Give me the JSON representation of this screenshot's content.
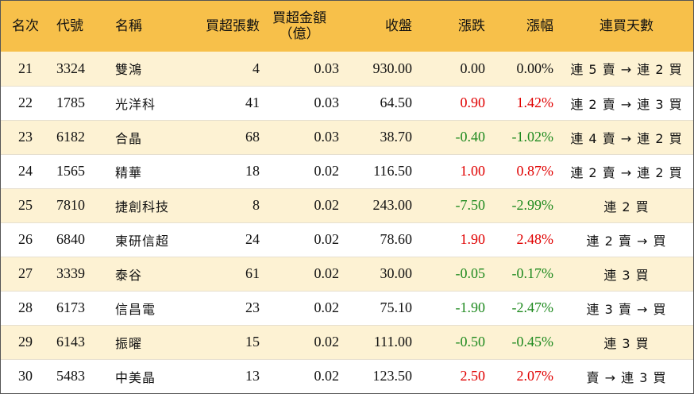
{
  "header": {
    "rank": "名次",
    "code": "代號",
    "name": "名稱",
    "net_buy_lots": "買超張數",
    "net_buy_amount_line1": "買超金額",
    "net_buy_amount_line2": "（億）",
    "close": "收盤",
    "change": "漲跌",
    "change_pct": "漲幅",
    "streak": "連買天數"
  },
  "rows": [
    {
      "rank": "21",
      "code": "3324",
      "name": "雙鴻",
      "lots": "4",
      "amount": "0.03",
      "close": "930.00",
      "change": "0.00",
      "pct": "0.00%",
      "streak": "連 5 賣 → 連 2 買",
      "trend": "flat"
    },
    {
      "rank": "22",
      "code": "1785",
      "name": "光洋科",
      "lots": "41",
      "amount": "0.03",
      "close": "64.50",
      "change": "0.90",
      "pct": "1.42%",
      "streak": "連 2 賣 → 連 3 買",
      "trend": "up"
    },
    {
      "rank": "23",
      "code": "6182",
      "name": "合晶",
      "lots": "68",
      "amount": "0.03",
      "close": "38.70",
      "change": "-0.40",
      "pct": "-1.02%",
      "streak": "連 4 賣 → 連 2 買",
      "trend": "down"
    },
    {
      "rank": "24",
      "code": "1565",
      "name": "精華",
      "lots": "18",
      "amount": "0.02",
      "close": "116.50",
      "change": "1.00",
      "pct": "0.87%",
      "streak": "連 2 賣 → 連 2 買",
      "trend": "up"
    },
    {
      "rank": "25",
      "code": "7810",
      "name": "捷創科技",
      "lots": "8",
      "amount": "0.02",
      "close": "243.00",
      "change": "-7.50",
      "pct": "-2.99%",
      "streak": "連 2 買",
      "trend": "down"
    },
    {
      "rank": "26",
      "code": "6840",
      "name": "東研信超",
      "lots": "24",
      "amount": "0.02",
      "close": "78.60",
      "change": "1.90",
      "pct": "2.48%",
      "streak": "連 2 賣 → 買",
      "trend": "up"
    },
    {
      "rank": "27",
      "code": "3339",
      "name": "泰谷",
      "lots": "61",
      "amount": "0.02",
      "close": "30.00",
      "change": "-0.05",
      "pct": "-0.17%",
      "streak": "連 3 買",
      "trend": "down"
    },
    {
      "rank": "28",
      "code": "6173",
      "name": "信昌電",
      "lots": "23",
      "amount": "0.02",
      "close": "75.10",
      "change": "-1.90",
      "pct": "-2.47%",
      "streak": "連 3 賣 → 買",
      "trend": "down"
    },
    {
      "rank": "29",
      "code": "6143",
      "name": "振曜",
      "lots": "15",
      "amount": "0.02",
      "close": "111.00",
      "change": "-0.50",
      "pct": "-0.45%",
      "streak": "連 3 買",
      "trend": "down"
    },
    {
      "rank": "30",
      "code": "5483",
      "name": "中美晶",
      "lots": "13",
      "amount": "0.02",
      "close": "123.50",
      "change": "2.50",
      "pct": "2.07%",
      "streak": "賣 → 連 3 買",
      "trend": "up"
    }
  ],
  "colors": {
    "header_bg": "#f7c04a",
    "odd_row_bg": "#fdf2d3",
    "up": "#e00000",
    "down": "#1f8a1f"
  }
}
